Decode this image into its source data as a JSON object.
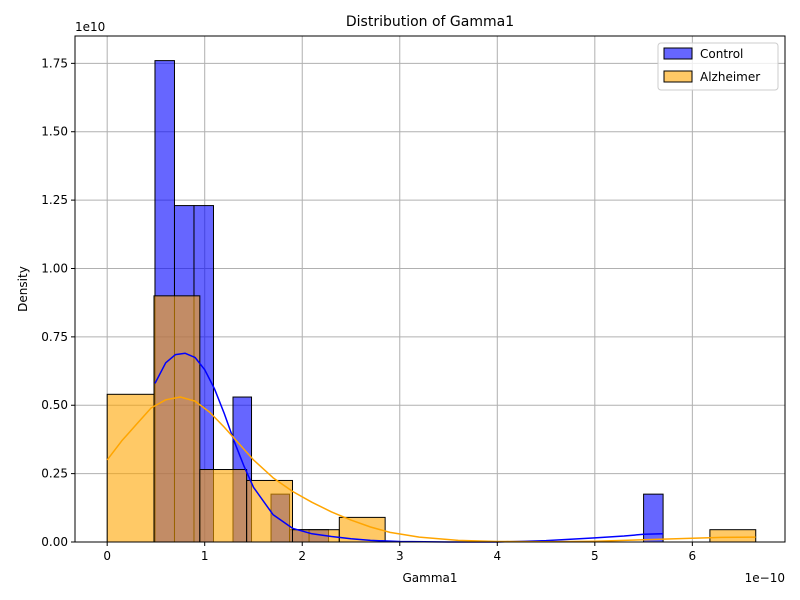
{
  "chart_data": {
    "type": "histogram",
    "title": "Distribution of Gamma1",
    "xlabel": "Gamma1",
    "ylabel": "Density",
    "x_offset_text": "1e−10",
    "y_offset_text": "1e10",
    "xlim": [
      -0.33,
      6.95
    ],
    "ylim": [
      0,
      1.85
    ],
    "x_ticks": [
      0,
      1,
      2,
      3,
      4,
      5,
      6
    ],
    "x_tick_labels": [
      "0",
      "1",
      "2",
      "3",
      "4",
      "5",
      "6"
    ],
    "y_ticks": [
      0,
      0.25,
      0.5,
      0.75,
      1.0,
      1.25,
      1.5,
      1.75
    ],
    "y_tick_labels": [
      "0.00",
      "0.25",
      "0.50",
      "0.75",
      "1.00",
      "1.25",
      "1.50",
      "1.75"
    ],
    "grid": true,
    "legend_position": "top-right",
    "series": [
      {
        "name": "Control",
        "color": "#0000ff",
        "kde_color": "#0000ff",
        "bins": [
          {
            "x0": 0.49,
            "x1": 0.69,
            "density": 1.76
          },
          {
            "x0": 0.69,
            "x1": 0.89,
            "density": 1.23
          },
          {
            "x0": 0.89,
            "x1": 1.09,
            "density": 1.23
          },
          {
            "x0": 1.09,
            "x1": 1.29,
            "density": 0.0
          },
          {
            "x0": 1.29,
            "x1": 1.48,
            "density": 0.53
          },
          {
            "x0": 1.48,
            "x1": 1.68,
            "density": 0.0
          },
          {
            "x0": 1.68,
            "x1": 1.87,
            "density": 0.175
          },
          {
            "x0": 1.87,
            "x1": 2.07,
            "density": 0.045
          },
          {
            "x0": 2.07,
            "x1": 2.27,
            "density": 0.045
          },
          {
            "x0": 5.5,
            "x1": 5.7,
            "density": 0.175
          }
        ],
        "kde": {
          "x": [
            0.49,
            0.6,
            0.7,
            0.8,
            0.9,
            1.0,
            1.1,
            1.2,
            1.3,
            1.4,
            1.5,
            1.7,
            1.9,
            2.1,
            2.3,
            2.5,
            2.7,
            3.0,
            3.5,
            4.0,
            4.5,
            5.0,
            5.3,
            5.5,
            5.7
          ],
          "y": [
            0.58,
            0.655,
            0.685,
            0.69,
            0.675,
            0.63,
            0.56,
            0.47,
            0.37,
            0.28,
            0.2,
            0.1,
            0.05,
            0.03,
            0.02,
            0.012,
            0.006,
            0.002,
            0.0,
            0.0,
            0.005,
            0.015,
            0.022,
            0.028,
            0.03
          ]
        }
      },
      {
        "name": "Alzheimer",
        "color": "#ffa500",
        "kde_color": "#ffa500",
        "bins": [
          {
            "x0": 0.0,
            "x1": 0.48,
            "density": 0.54
          },
          {
            "x0": 0.48,
            "x1": 0.95,
            "density": 0.9
          },
          {
            "x0": 0.95,
            "x1": 1.43,
            "density": 0.265
          },
          {
            "x0": 1.43,
            "x1": 1.9,
            "density": 0.225
          },
          {
            "x0": 1.9,
            "x1": 2.38,
            "density": 0.045
          },
          {
            "x0": 2.38,
            "x1": 2.85,
            "density": 0.09
          },
          {
            "x0": 6.18,
            "x1": 6.65,
            "density": 0.045
          }
        ],
        "kde": {
          "x": [
            0.0,
            0.15,
            0.3,
            0.45,
            0.6,
            0.75,
            0.9,
            1.05,
            1.2,
            1.35,
            1.5,
            1.7,
            1.9,
            2.1,
            2.3,
            2.5,
            2.7,
            2.9,
            3.2,
            3.6,
            4.0,
            4.5,
            5.0,
            5.5,
            6.0,
            6.3,
            6.65
          ],
          "y": [
            0.3,
            0.37,
            0.43,
            0.49,
            0.52,
            0.53,
            0.515,
            0.475,
            0.42,
            0.36,
            0.3,
            0.235,
            0.185,
            0.145,
            0.11,
            0.08,
            0.055,
            0.035,
            0.018,
            0.006,
            0.002,
            0.001,
            0.003,
            0.008,
            0.014,
            0.017,
            0.018
          ]
        }
      }
    ]
  }
}
